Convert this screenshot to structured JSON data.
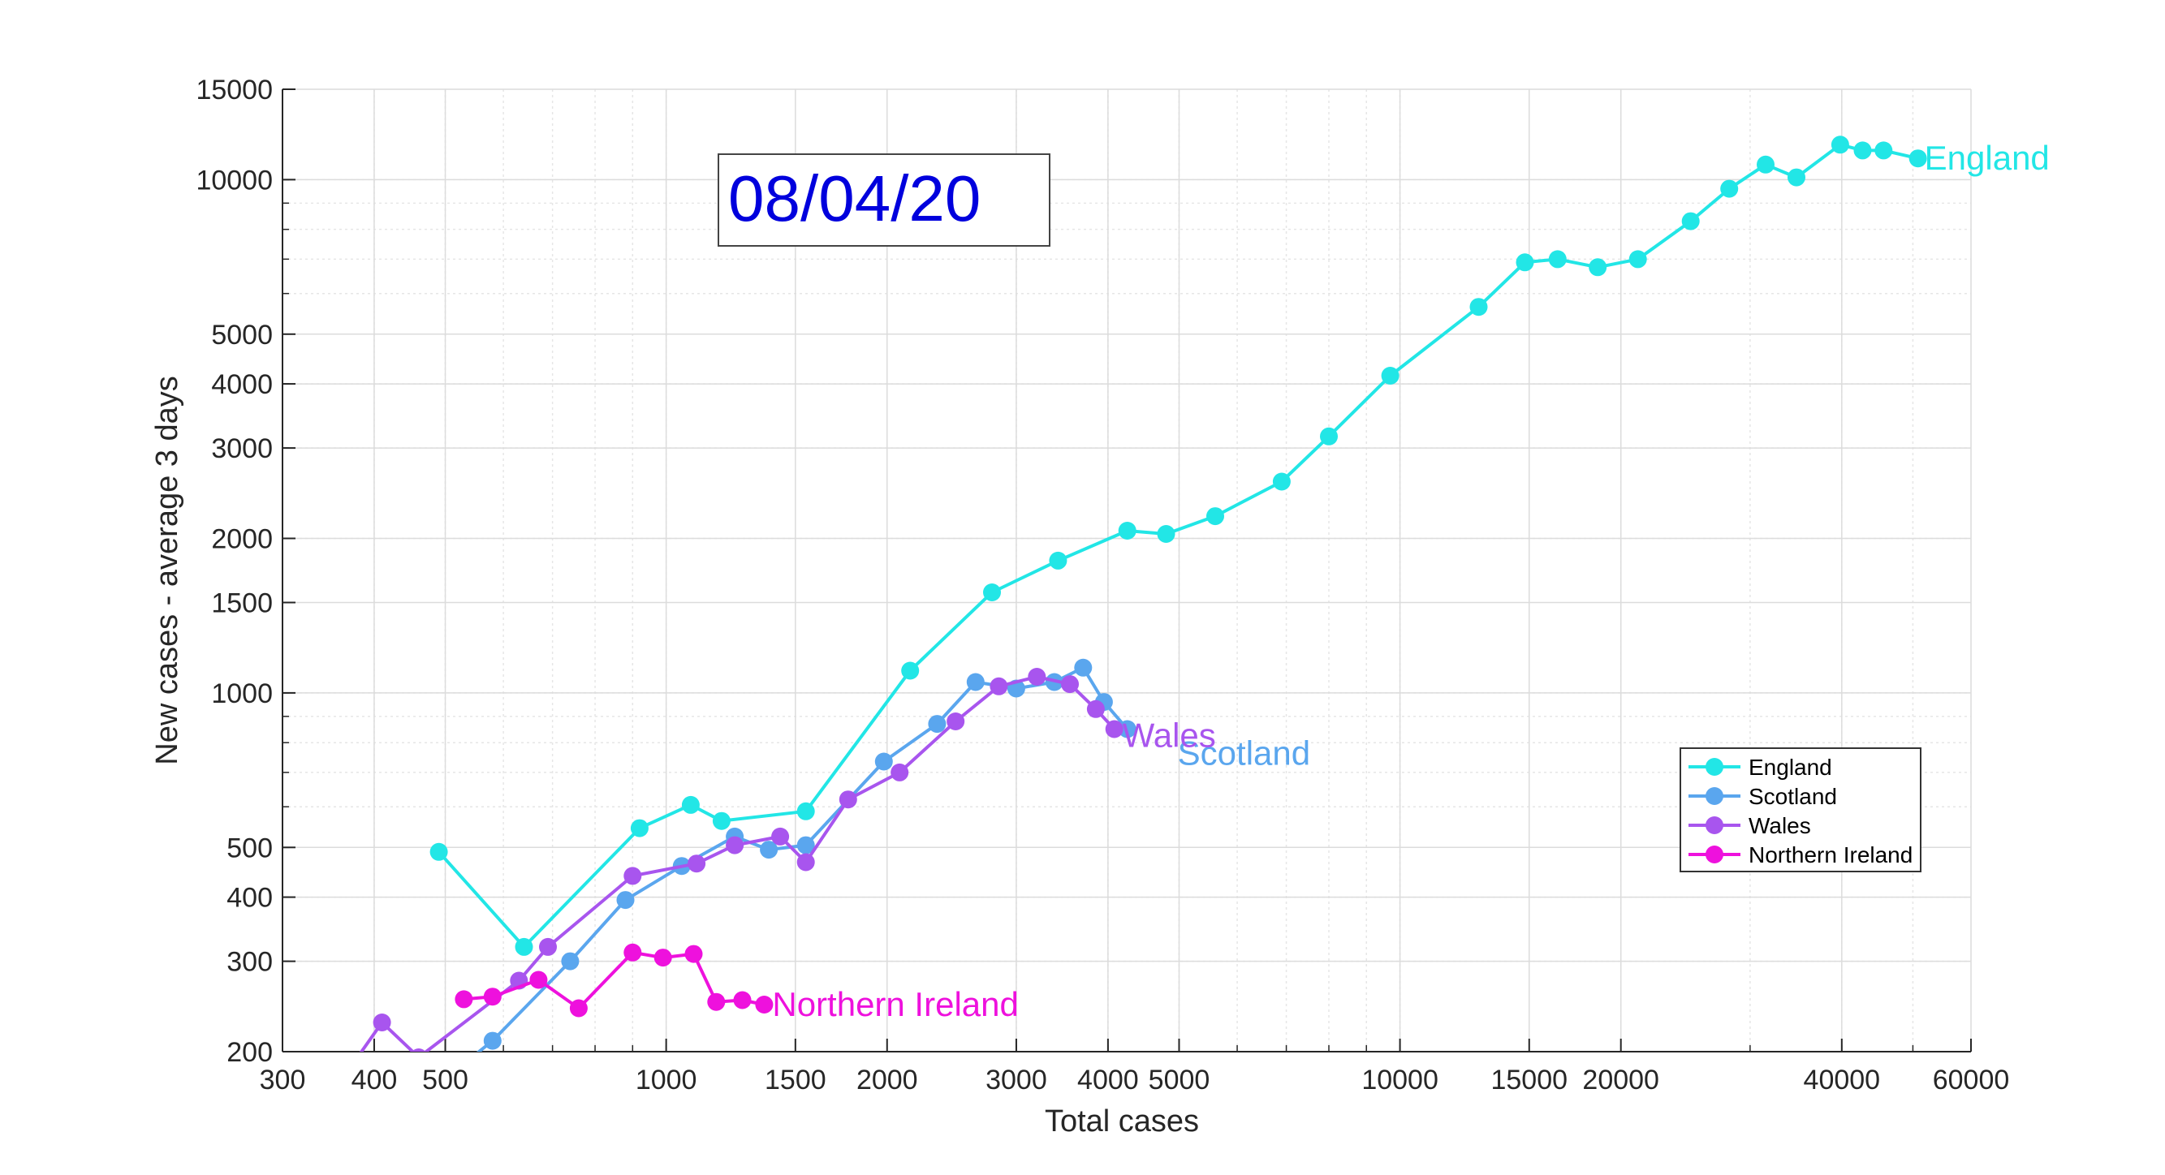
{
  "chart_data": {
    "type": "line",
    "xlabel": "Total cases",
    "ylabel": "New cases - average 3 days",
    "xscale": "log",
    "yscale": "log",
    "xlim": [
      300,
      60000
    ],
    "ylim": [
      200,
      15000
    ],
    "xticks": [
      300,
      400,
      500,
      1000,
      1500,
      2000,
      3000,
      4000,
      5000,
      10000,
      15000,
      20000,
      40000,
      60000
    ],
    "xtick_labels": [
      "300",
      "400",
      "500",
      "1000",
      "1500",
      "2000",
      "3000",
      "4000",
      "5000",
      "10000",
      "15000",
      "20000",
      "40000",
      "60000"
    ],
    "yticks": [
      200,
      300,
      400,
      500,
      1000,
      1500,
      2000,
      3000,
      4000,
      5000,
      10000,
      15000
    ],
    "ytick_labels": [
      "200",
      "300",
      "400",
      "500",
      "1000",
      "1500",
      "2000",
      "3000",
      "4000",
      "5000",
      "10000",
      "15000"
    ],
    "grid": true,
    "legend_position": "right, below middle",
    "annotation": "08/04/20",
    "annotation_color": "#0000dd",
    "series": [
      {
        "name": "England",
        "end_label": "England",
        "color": "#22e6e6",
        "points": [
          [
            490,
            490
          ],
          [
            640,
            320
          ],
          [
            920,
            545
          ],
          [
            1080,
            605
          ],
          [
            1190,
            563
          ],
          [
            1550,
            588
          ],
          [
            2150,
            1105
          ],
          [
            2780,
            1570
          ],
          [
            3420,
            1810
          ],
          [
            4250,
            2070
          ],
          [
            4800,
            2040
          ],
          [
            5600,
            2210
          ],
          [
            6900,
            2580
          ],
          [
            8000,
            3160
          ],
          [
            9700,
            4150
          ],
          [
            12800,
            5650
          ],
          [
            14800,
            6900
          ],
          [
            16400,
            7000
          ],
          [
            18600,
            6750
          ],
          [
            21100,
            7000
          ],
          [
            24900,
            8300
          ],
          [
            28100,
            9600
          ],
          [
            31500,
            10700
          ],
          [
            34700,
            10100
          ],
          [
            39800,
            11700
          ],
          [
            42700,
            11400
          ],
          [
            45600,
            11400
          ],
          [
            50800,
            11000
          ]
        ]
      },
      {
        "name": "Scotland",
        "end_label": "Scotland",
        "color": "#5aa6ee",
        "points": [
          [
            470,
            165
          ],
          [
            580,
            210
          ],
          [
            740,
            300
          ],
          [
            880,
            395
          ],
          [
            1050,
            460
          ],
          [
            1240,
            525
          ],
          [
            1380,
            495
          ],
          [
            1550,
            505
          ],
          [
            1980,
            735
          ],
          [
            2340,
            870
          ],
          [
            2640,
            1050
          ],
          [
            3000,
            1020
          ],
          [
            3380,
            1050
          ],
          [
            3700,
            1120
          ],
          [
            3950,
            960
          ],
          [
            4250,
            850
          ]
        ]
      },
      {
        "name": "Wales",
        "end_label": "Wales",
        "color": "#a855ee",
        "points": [
          [
            370,
            185
          ],
          [
            410,
            228
          ],
          [
            460,
            195
          ],
          [
            630,
            275
          ],
          [
            690,
            320
          ],
          [
            900,
            440
          ],
          [
            1100,
            465
          ],
          [
            1240,
            505
          ],
          [
            1430,
            525
          ],
          [
            1550,
            468
          ],
          [
            1770,
            620
          ],
          [
            2080,
            700
          ],
          [
            2480,
            880
          ],
          [
            2840,
            1030
          ],
          [
            3200,
            1075
          ],
          [
            3550,
            1040
          ],
          [
            3850,
            930
          ],
          [
            4080,
            850
          ]
        ]
      },
      {
        "name": "Northern Ireland",
        "end_label": "Northern Ireland",
        "color": "#ee11dd",
        "points": [
          [
            530,
            253
          ],
          [
            580,
            256
          ],
          [
            670,
            276
          ],
          [
            760,
            243
          ],
          [
            900,
            312
          ],
          [
            990,
            305
          ],
          [
            1090,
            310
          ],
          [
            1170,
            250
          ],
          [
            1270,
            252
          ],
          [
            1360,
            247
          ]
        ]
      }
    ]
  }
}
